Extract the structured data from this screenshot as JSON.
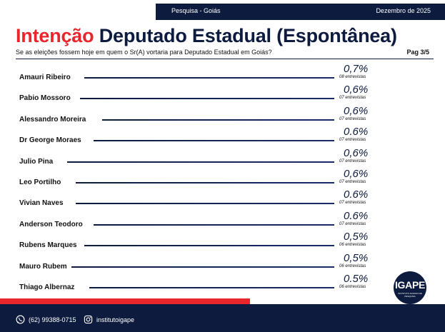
{
  "header": {
    "topbar_title": "Pesquisa - Goiás",
    "date": "Dezembro de 2025",
    "title_accent": "Intenção",
    "title_rest": "Deputado Estadual (Espontânea)",
    "subtitle": "Se as eleições fossem hoje em quem o Sr(A) vortaria para Deputado Estadual em Goiás?",
    "page": "Pag 3/5"
  },
  "chart_data": {
    "type": "table",
    "title": "Intenção Deputado Estadual (Espontânea)",
    "rows": [
      {
        "name": "Amauri Ribeiro",
        "pct": "0,7%",
        "count": "08 entrevistas",
        "value": 0.7,
        "interviews": 8
      },
      {
        "name": "Pabio Mossoro",
        "pct": "0,6%",
        "count": "07 entrevistas",
        "value": 0.6,
        "interviews": 7
      },
      {
        "name": "Alessandro Moreira",
        "pct": "0,6%",
        "count": "07 entrevistas",
        "value": 0.6,
        "interviews": 7
      },
      {
        "name": "Dr George Moraes",
        "pct": "0.6%",
        "count": "07 entrevistas",
        "value": 0.6,
        "interviews": 7
      },
      {
        "name": "Julio Pina",
        "pct": "0,6%",
        "count": "07 entrevistas",
        "value": 0.6,
        "interviews": 7
      },
      {
        "name": "Leo Portilho",
        "pct": "0,6%",
        "count": "07 entrevistas",
        "value": 0.6,
        "interviews": 7
      },
      {
        "name": "Vivian Naves",
        "pct": "0.6%",
        "count": "07 entrevistas",
        "value": 0.6,
        "interviews": 7
      },
      {
        "name": "Anderson Teodoro",
        "pct": "0.6%",
        "count": "07 entrevistas",
        "value": 0.6,
        "interviews": 7
      },
      {
        "name": "Rubens Marques",
        "pct": "0,5%",
        "count": "06 entrevistas",
        "value": 0.5,
        "interviews": 6
      },
      {
        "name": "Mauro Rubem",
        "pct": "0,5%",
        "count": "06 entrevistas",
        "value": 0.5,
        "interviews": 6
      },
      {
        "name": "Thiago Albernaz",
        "pct": "0.5%",
        "count": "06 entrevistas",
        "value": 0.5,
        "interviews": 6
      }
    ]
  },
  "logo": {
    "text": "IGAPE",
    "subtext": "INSTITUTO GOIANO DE PESQUISA"
  },
  "footer": {
    "phone": "(62) 99388-0715",
    "instagram": "institutoigape"
  },
  "colors": {
    "navy": "#0d1b3e",
    "red": "#e8262c"
  }
}
